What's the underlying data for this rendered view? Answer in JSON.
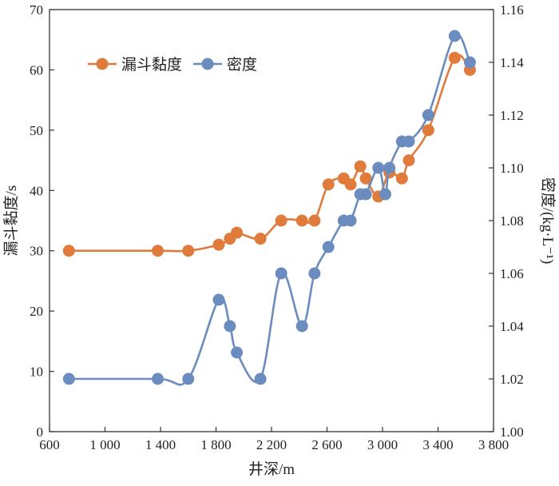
{
  "chart_data": {
    "type": "line",
    "title": "",
    "xlabel": "井深/m",
    "ylabel": "漏斗黏度/s",
    "ylabel_right": "密度/(kg·L⁻¹)",
    "xlim": [
      600,
      3800
    ],
    "ylim": [
      0,
      70
    ],
    "ylim_right": [
      1.0,
      1.16
    ],
    "x_ticks": [
      600,
      1000,
      1400,
      1800,
      2200,
      2600,
      3000,
      3400,
      3800
    ],
    "x_tick_labels": [
      "600",
      "1 000",
      "1 400",
      "1 800",
      "2 200",
      "2 600",
      "3 000",
      "3 400",
      "3 800"
    ],
    "y_ticks": [
      0,
      10,
      20,
      30,
      40,
      50,
      60,
      70
    ],
    "y_tick_labels": [
      "0",
      "10",
      "20",
      "30",
      "40",
      "50",
      "60",
      "70"
    ],
    "y_right_ticks": [
      1.0,
      1.02,
      1.04,
      1.06,
      1.08,
      1.1,
      1.12,
      1.14,
      1.16
    ],
    "y_right_tick_labels": [
      "1.00",
      "1.02",
      "1.04",
      "1.06",
      "1.08",
      "1.10",
      "1.12",
      "1.14",
      "1.16"
    ],
    "grid": false,
    "legend_position": "top-left",
    "series": [
      {
        "name": "漏斗黏度",
        "axis": "left",
        "color": "#e07b3c",
        "x": [
          740,
          1380,
          1600,
          1820,
          1900,
          1950,
          2120,
          2270,
          2420,
          2510,
          2610,
          2720,
          2770,
          2840,
          2880,
          2970,
          3050,
          3140,
          3190,
          3330,
          3520,
          3630
        ],
        "values": [
          30,
          30,
          30,
          31,
          32,
          33,
          32,
          35,
          35,
          35,
          41,
          42,
          41,
          44,
          42,
          39,
          43,
          42,
          45,
          50,
          62,
          60
        ]
      },
      {
        "name": "密度",
        "axis": "right",
        "color": "#6b8cbf",
        "x": [
          740,
          1380,
          1600,
          1820,
          1900,
          1950,
          2120,
          2270,
          2420,
          2510,
          2610,
          2720,
          2770,
          2840,
          2880,
          2970,
          3020,
          3050,
          3140,
          3190,
          3330,
          3520,
          3630
        ],
        "values": [
          1.02,
          1.02,
          1.02,
          1.05,
          1.04,
          1.03,
          1.02,
          1.06,
          1.04,
          1.06,
          1.07,
          1.08,
          1.08,
          1.09,
          1.09,
          1.1,
          1.09,
          1.1,
          1.11,
          1.11,
          1.12,
          1.15,
          1.14
        ]
      }
    ]
  }
}
